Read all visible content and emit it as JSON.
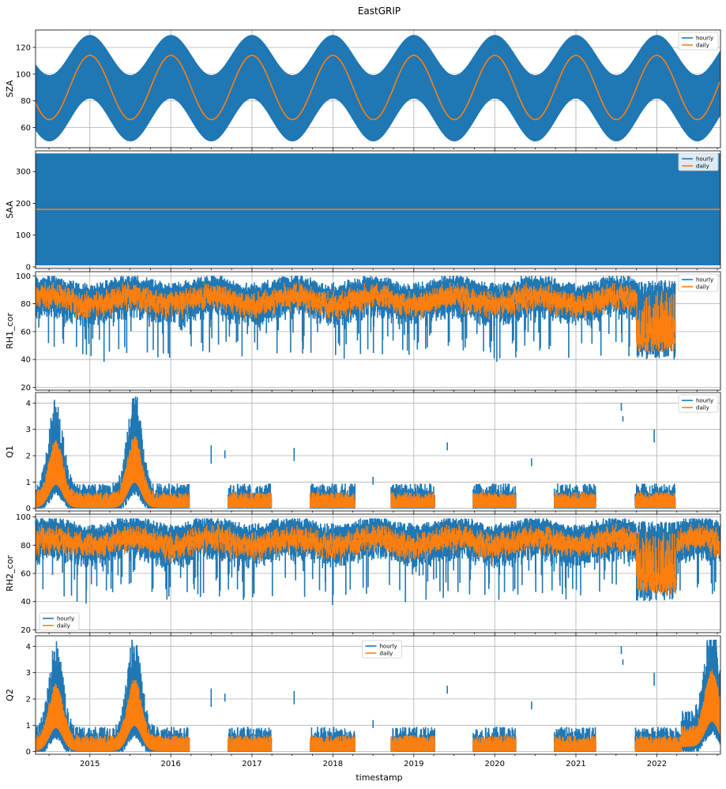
{
  "figure": {
    "title": "EastGRIP",
    "xlabel": "timestamp",
    "x_tick_labels": [
      "2015",
      "2016",
      "2017",
      "2018",
      "2019",
      "2020",
      "2021",
      "2022"
    ],
    "x_range": [
      "2014-05-01",
      "2022-10-15"
    ]
  },
  "colors": {
    "hourly": "#1f77b4",
    "daily": "#ff7f0e",
    "grid": "#b0b0b0"
  },
  "chart_data": [
    {
      "type": "line",
      "ylabel": "SZA",
      "ylim": [
        45,
        133
      ],
      "yticks": [
        60,
        80,
        100,
        120
      ],
      "grid": true,
      "legend": "top-right",
      "series": [
        {
          "name": "hourly",
          "kind": "band",
          "description_values": {
            "min_mid": 66,
            "min_amp": 16,
            "max_mid": 114,
            "max_amp": 15
          }
        },
        {
          "name": "daily",
          "kind": "line",
          "description_values": {
            "mid": 90,
            "amp": 24
          }
        }
      ]
    },
    {
      "type": "line",
      "ylabel": "SAA",
      "ylim": [
        -5,
        365
      ],
      "yticks": [
        0,
        100,
        200,
        300
      ],
      "grid": true,
      "legend": "top-right",
      "series": [
        {
          "name": "hourly",
          "kind": "band",
          "min": 5,
          "max": 357
        },
        {
          "name": "daily",
          "kind": "line",
          "value": 181
        }
      ]
    },
    {
      "type": "line",
      "ylabel": "RH1_cor",
      "ylim": [
        18,
        103
      ],
      "yticks": [
        20,
        40,
        60,
        80,
        100
      ],
      "grid": true,
      "legend": "top-right",
      "series": [
        {
          "name": "hourly",
          "range": [
            22,
            100
          ],
          "typical": [
            70,
            97
          ]
        },
        {
          "name": "daily",
          "range": [
            42,
            96
          ],
          "typical": [
            78,
            92
          ]
        }
      ],
      "data_end": "2022-03-25"
    },
    {
      "type": "line",
      "ylabel": "Q1",
      "ylim": [
        -0.1,
        4.4
      ],
      "yticks": [
        0,
        1,
        2,
        3,
        4
      ],
      "grid": true,
      "legend": "top-right",
      "series": [
        {
          "name": "hourly",
          "max": 4.25
        },
        {
          "name": "daily",
          "max": 3.3
        }
      ],
      "data_end": "2022-03-25"
    },
    {
      "type": "line",
      "ylabel": "RH2_cor",
      "ylim": [
        18,
        102
      ],
      "yticks": [
        20,
        40,
        60,
        80,
        100
      ],
      "grid": true,
      "legend": "bottom-left",
      "series": [
        {
          "name": "hourly",
          "range": [
            22,
            99
          ],
          "typical": [
            72,
            96
          ]
        },
        {
          "name": "daily",
          "range": [
            38,
            96
          ],
          "typical": [
            78,
            92
          ]
        }
      ],
      "data_end": "2022-10-15"
    },
    {
      "type": "line",
      "ylabel": "Q2",
      "ylim": [
        -0.1,
        4.4
      ],
      "yticks": [
        0,
        1,
        2,
        3,
        4
      ],
      "grid": true,
      "legend": "top-center",
      "series": [
        {
          "name": "hourly",
          "max": 4.25
        },
        {
          "name": "daily",
          "max": 3.3
        }
      ],
      "data_end": "2022-10-15"
    }
  ]
}
